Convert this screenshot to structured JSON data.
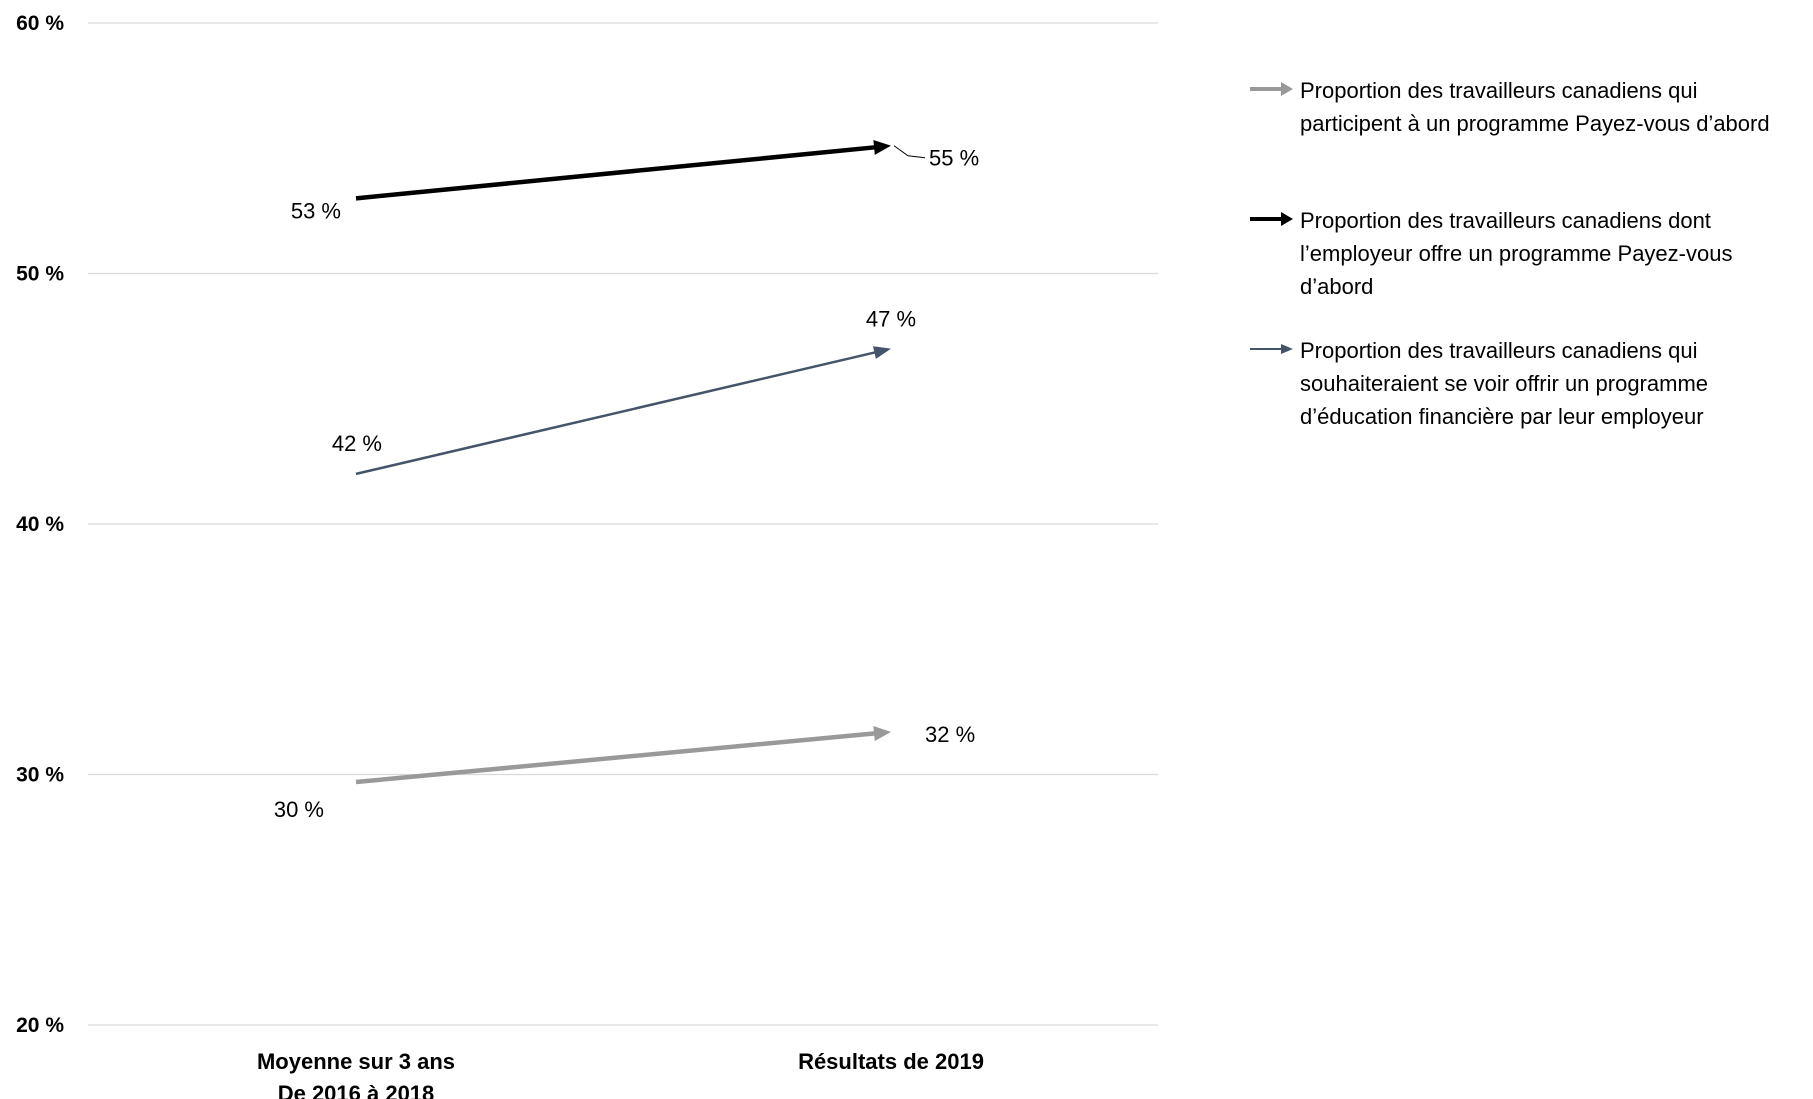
{
  "chart_data": {
    "type": "line",
    "categories": [
      [
        "Moyenne sur 3 ans",
        "De 2016 à 2018"
      ],
      [
        "Résultats de 2019"
      ]
    ],
    "ylim": [
      20,
      60
    ],
    "yticks": [
      {
        "value": 20,
        "label": "20 %"
      },
      {
        "value": 30,
        "label": "30 %"
      },
      {
        "value": 40,
        "label": "40 %"
      },
      {
        "value": 50,
        "label": "50 %"
      },
      {
        "value": 60,
        "label": "60 %"
      }
    ],
    "grid": true,
    "legend_position": "right",
    "series": [
      {
        "name": "Proportion des travailleurs canadiens qui participent à un programme Payez-vous d’abord",
        "legend_lines": [
          "Proportion des travailleurs canadiens qui",
          "participent à un programme Payez-vous d’abord"
        ],
        "values": [
          29.7,
          31.7
        ],
        "labels": [
          "30 %",
          "32 %"
        ],
        "color": "#999999"
      },
      {
        "name": "Proportion des travailleurs canadiens dont l’employeur offre un programme Payez-vous d’abord",
        "legend_lines": [
          "Proportion des travailleurs canadiens dont",
          "l’employeur offre un programme Payez-vous",
          "d’abord"
        ],
        "values": [
          53.0,
          55.1
        ],
        "labels": [
          "53 %",
          "55 %"
        ],
        "color": "#000000"
      },
      {
        "name": "Proportion des travailleurs canadiens qui souhaiteraient se voir offrir un programme d’éducation financière par leur employeur",
        "legend_lines": [
          "Proportion des travailleurs canadiens qui",
          "souhaiteraient se voir offrir un programme",
          "d’éducation financière par leur employeur"
        ],
        "values": [
          42.0,
          47.0
        ],
        "labels": [
          "42 %",
          "47 %"
        ],
        "color": "#44546a"
      }
    ]
  }
}
